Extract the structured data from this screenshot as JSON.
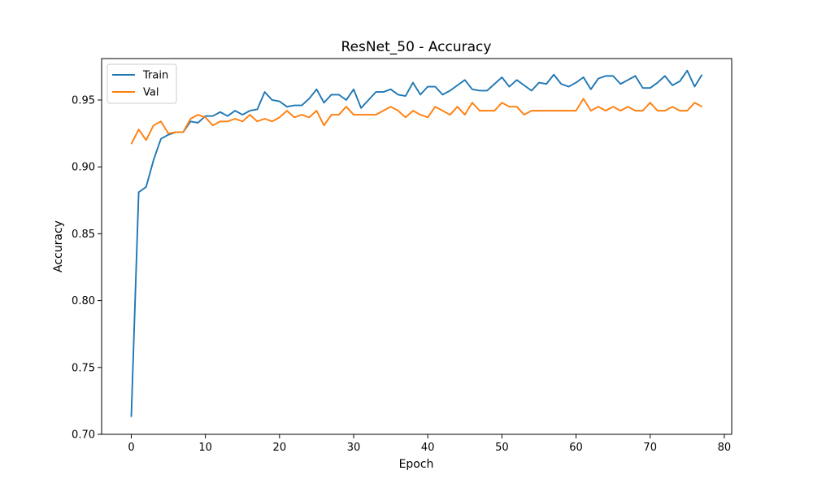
{
  "chart_data": {
    "type": "line",
    "title": "ResNet_50 - Accuracy",
    "xlabel": "Epoch",
    "ylabel": "Accuracy",
    "xlim": [
      -4,
      81
    ],
    "ylim": [
      0.7,
      0.981
    ],
    "xticks": [
      0,
      10,
      20,
      30,
      40,
      50,
      60,
      70,
      80
    ],
    "yticks": [
      0.7,
      0.75,
      0.8,
      0.85,
      0.9,
      0.95
    ],
    "xtick_labels": [
      "0",
      "10",
      "20",
      "30",
      "40",
      "50",
      "60",
      "70",
      "80"
    ],
    "ytick_labels": [
      "0.70",
      "0.75",
      "0.80",
      "0.85",
      "0.90",
      "0.95"
    ],
    "grid": false,
    "legend_position": "upper-left",
    "series": [
      {
        "name": "Train",
        "color": "#1f77b4",
        "values": [
          0.713,
          0.881,
          0.885,
          0.905,
          0.921,
          0.924,
          0.926,
          0.926,
          0.934,
          0.933,
          0.938,
          0.938,
          0.941,
          0.938,
          0.942,
          0.939,
          0.942,
          0.943,
          0.956,
          0.95,
          0.949,
          0.945,
          0.946,
          0.946,
          0.951,
          0.958,
          0.948,
          0.954,
          0.954,
          0.95,
          0.958,
          0.944,
          0.95,
          0.956,
          0.956,
          0.958,
          0.954,
          0.953,
          0.963,
          0.954,
          0.96,
          0.96,
          0.954,
          0.957,
          0.961,
          0.965,
          0.958,
          0.957,
          0.957,
          0.962,
          0.967,
          0.96,
          0.965,
          0.961,
          0.957,
          0.963,
          0.962,
          0.969,
          0.962,
          0.96,
          0.963,
          0.967,
          0.958,
          0.966,
          0.968,
          0.968,
          0.962,
          0.965,
          0.968,
          0.959,
          0.959,
          0.963,
          0.968,
          0.961,
          0.964,
          0.972,
          0.96,
          0.969
        ]
      },
      {
        "name": "Val",
        "color": "#ff7f0e",
        "values": [
          0.917,
          0.928,
          0.92,
          0.931,
          0.934,
          0.925,
          0.926,
          0.926,
          0.936,
          0.939,
          0.937,
          0.931,
          0.934,
          0.934,
          0.936,
          0.934,
          0.939,
          0.934,
          0.936,
          0.934,
          0.937,
          0.942,
          0.937,
          0.939,
          0.937,
          0.942,
          0.931,
          0.939,
          0.939,
          0.945,
          0.939,
          0.939,
          0.939,
          0.939,
          0.942,
          0.945,
          0.942,
          0.937,
          0.942,
          0.939,
          0.937,
          0.945,
          0.942,
          0.939,
          0.945,
          0.939,
          0.948,
          0.942,
          0.942,
          0.942,
          0.948,
          0.945,
          0.945,
          0.939,
          0.942,
          0.942,
          0.942,
          0.942,
          0.942,
          0.942,
          0.942,
          0.951,
          0.942,
          0.945,
          0.942,
          0.945,
          0.942,
          0.945,
          0.942,
          0.942,
          0.948,
          0.942,
          0.942,
          0.945,
          0.942,
          0.942,
          0.948,
          0.945
        ]
      }
    ]
  }
}
